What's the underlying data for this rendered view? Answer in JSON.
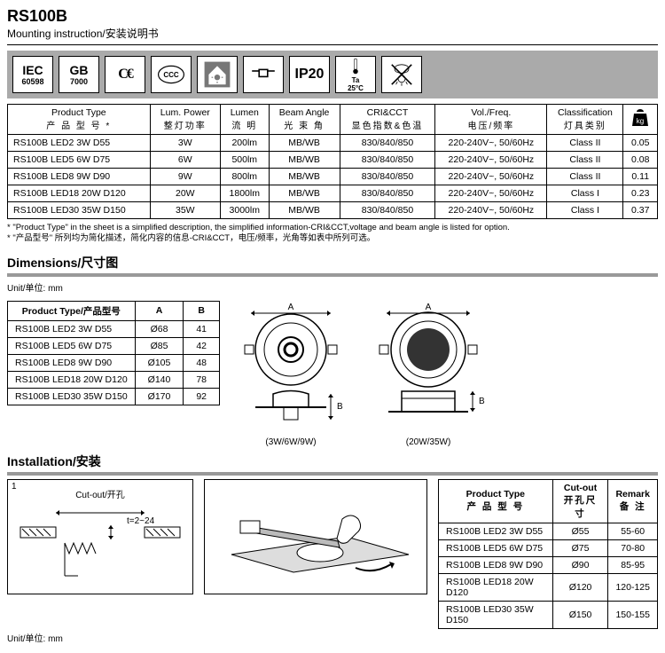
{
  "header": {
    "model": "RS100B",
    "subtitle_en": "Mounting instruction",
    "subtitle_zh": "/安装说明书"
  },
  "cert_icons": [
    {
      "name": "iec",
      "line1": "IEC",
      "line2": "60598"
    },
    {
      "name": "gb",
      "line1": "GB",
      "line2": "7000"
    },
    {
      "name": "ce",
      "text": "CE"
    },
    {
      "name": "ccc",
      "text": "CCC"
    },
    {
      "name": "indoor",
      "text": ""
    },
    {
      "name": "recessed",
      "text": ""
    },
    {
      "name": "ip20",
      "text": "IP20"
    },
    {
      "name": "ta25",
      "line1": "Ta",
      "line2": "25°C"
    },
    {
      "name": "no-cover",
      "text": ""
    }
  ],
  "spec_table": {
    "headers": [
      {
        "en": "Product Type",
        "zh": "产 品 型 号 *"
      },
      {
        "en": "Lum. Power",
        "zh": "整灯功率"
      },
      {
        "en": "Lumen",
        "zh": "流 明"
      },
      {
        "en": "Beam Angle",
        "zh": "光 束 角"
      },
      {
        "en": "CRI&CCT",
        "zh": "显色指数&色温"
      },
      {
        "en": "Vol./Freq.",
        "zh": "电压/频率"
      },
      {
        "en": "Classification",
        "zh": "灯具类别"
      },
      {
        "en": "",
        "zh": "",
        "icon": "weight"
      }
    ],
    "rows": [
      [
        "RS100B LED2 3W D55",
        "3W",
        "200lm",
        "MB/WB",
        "830/840/850",
        "220-240V~, 50/60Hz",
        "Class II",
        "0.05"
      ],
      [
        "RS100B LED5 6W D75",
        "6W",
        "500lm",
        "MB/WB",
        "830/840/850",
        "220-240V~, 50/60Hz",
        "Class II",
        "0.08"
      ],
      [
        "RS100B LED8 9W D90",
        "9W",
        "800lm",
        "MB/WB",
        "830/840/850",
        "220-240V~, 50/60Hz",
        "Class II",
        "0.11"
      ],
      [
        "RS100B LED18 20W D120",
        "20W",
        "1800lm",
        "MB/WB",
        "830/840/850",
        "220-240V~, 50/60Hz",
        "Class I",
        "0.23"
      ],
      [
        "RS100B LED30 35W D150",
        "35W",
        "3000lm",
        "MB/WB",
        "830/840/850",
        "220-240V~, 50/60Hz",
        "Class I",
        "0.37"
      ]
    ]
  },
  "footnote": {
    "en": "* \"Product Type\" in the sheet is a simplified description, the simplified information-CRI&CCT,voltage and beam angle is listed for option.",
    "zh": "* \"产品型号\" 所列均为简化描述，简化内容的信息-CRI&CCT，电压/频率，光角等如表中所列可选。"
  },
  "dimensions": {
    "title": "Dimensions/尺寸图",
    "unit": "Unit/单位: mm",
    "headers": [
      "Product Type/产品型号",
      "A",
      "B"
    ],
    "rows": [
      [
        "RS100B LED2 3W D55",
        "Ø68",
        "41"
      ],
      [
        "RS100B LED5 6W D75",
        "Ø85",
        "42"
      ],
      [
        "RS100B LED8 9W D90",
        "Ø105",
        "48"
      ],
      [
        "RS100B LED18 20W D120",
        "Ø140",
        "78"
      ],
      [
        "RS100B LED30 35W D150",
        "Ø170",
        "92"
      ]
    ],
    "diag1_label": "(3W/6W/9W)",
    "diag2_label": "(20W/35W)",
    "dim_a": "A",
    "dim_b": "B"
  },
  "installation": {
    "title": "Installation/安装",
    "step": "1",
    "cutout_label": "Cut-out/开孔",
    "thickness": "t=2~24",
    "unit": "Unit/单位: mm",
    "table_headers": [
      {
        "en": "Product Type",
        "zh": "产 品 型 号"
      },
      {
        "en": "Cut-out",
        "zh": "开孔尺寸"
      },
      {
        "en": "Remark",
        "zh": "备  注"
      }
    ],
    "rows": [
      [
        "RS100B LED2 3W D55",
        "Ø55",
        "55-60"
      ],
      [
        "RS100B LED5 6W D75",
        "Ø75",
        "70-80"
      ],
      [
        "RS100B LED8 9W D90",
        "Ø90",
        "85-95"
      ],
      [
        "RS100B LED18 20W D120",
        "Ø120",
        "120-125"
      ],
      [
        "RS100B LED30 35W D150",
        "Ø150",
        "150-155"
      ]
    ]
  }
}
